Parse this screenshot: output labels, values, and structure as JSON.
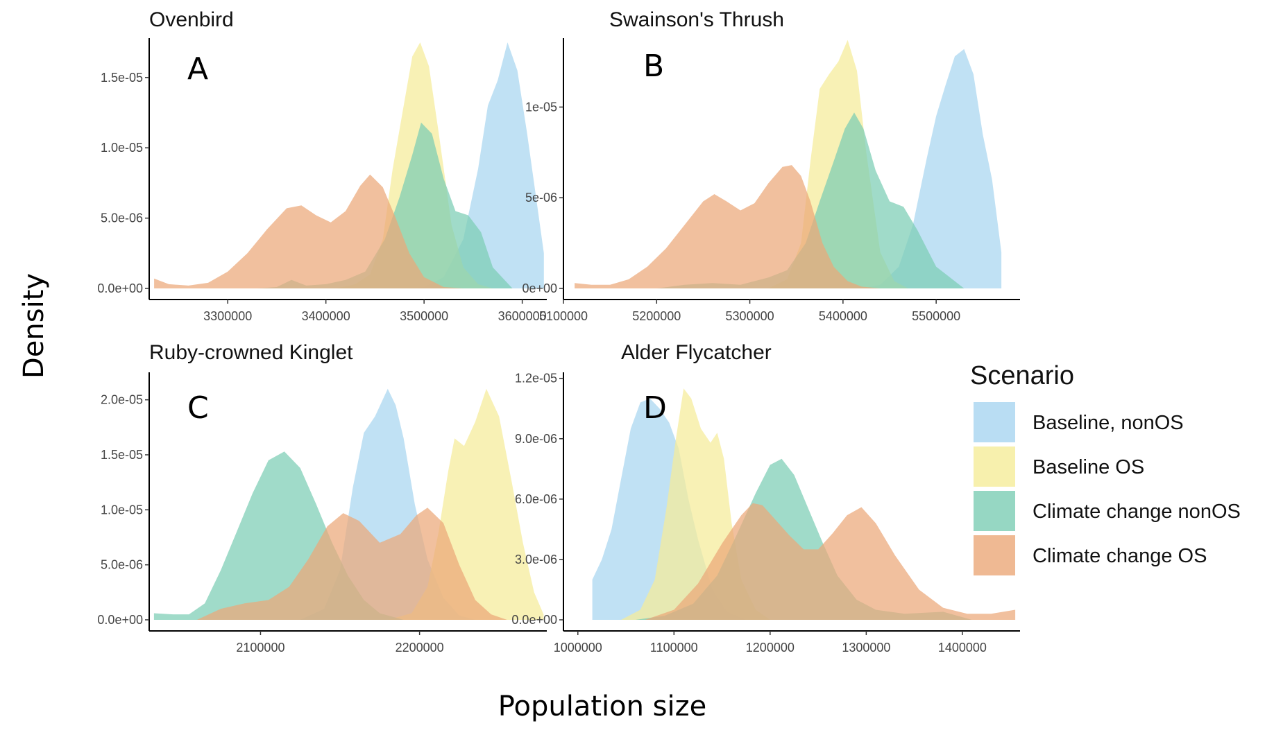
{
  "figure": {
    "ylabel": "Density",
    "xlabel": "Population size"
  },
  "legend": {
    "title": "Scenario",
    "placement": "right"
  },
  "colors": {
    "Baseline, nonOS": "#a8d5f0",
    "Baseline OS": "#f5ec98",
    "Climate change nonOS": "#7ccdb4",
    "Climate change OS": "#eba878"
  },
  "chart_data": [
    {
      "type": "area",
      "title": "Ovenbird",
      "letter": "A",
      "xlim": [
        3220000,
        3625000
      ],
      "ylim": [
        0,
        1.78e-05
      ],
      "xticks": [
        3300000,
        3400000,
        3500000,
        3600000
      ],
      "xtick_labels": [
        "3300000",
        "3400000",
        "3500000",
        "3600000"
      ],
      "yticks": [
        0,
        5e-06,
        1e-05,
        1.5e-05
      ],
      "ytick_labels": [
        "0.0e+00",
        "5.0e-06",
        "1.0e-05",
        "1.5e-05"
      ],
      "series": [
        {
          "name": "Baseline, nonOS",
          "x": [
            3480000,
            3500000,
            3520000,
            3540000,
            3555000,
            3565000,
            3575000,
            3585000,
            3595000,
            3605000,
            3615000,
            3622000,
            3622000
          ],
          "y": [
            0,
            1e-07,
            8e-07,
            3.5e-06,
            8.5e-06,
            1.3e-05,
            1.48e-05,
            1.75e-05,
            1.55e-05,
            1.1e-05,
            6e-06,
            2.5e-06,
            0
          ]
        },
        {
          "name": "Baseline OS",
          "x": [
            3410000,
            3430000,
            3445000,
            3458000,
            3468000,
            3478000,
            3488000,
            3496000,
            3505000,
            3515000,
            3528000,
            3540000,
            3555000,
            3570000
          ],
          "y": [
            0,
            3e-07,
            1e-06,
            3.5e-06,
            8.5e-06,
            1.25e-05,
            1.65e-05,
            1.75e-05,
            1.58e-05,
            1.1e-05,
            4.5e-06,
            1.5e-06,
            3e-07,
            0
          ]
        },
        {
          "name": "Climate change nonOS",
          "x": [
            3330000,
            3350000,
            3365000,
            3380000,
            3400000,
            3420000,
            3440000,
            3460000,
            3475000,
            3488000,
            3497000,
            3508000,
            3520000,
            3532000,
            3545000,
            3558000,
            3570000,
            3590000
          ],
          "y": [
            0,
            1e-07,
            6e-07,
            2e-07,
            3e-07,
            6e-07,
            1.2e-06,
            3.5e-06,
            6.5e-06,
            9.5e-06,
            1.18e-05,
            1.1e-05,
            7.8e-06,
            5.5e-06,
            5.2e-06,
            4e-06,
            1.5e-06,
            0
          ]
        },
        {
          "name": "Climate change OS",
          "x": [
            3225000,
            3240000,
            3260000,
            3280000,
            3300000,
            3320000,
            3340000,
            3360000,
            3375000,
            3390000,
            3405000,
            3420000,
            3435000,
            3445000,
            3458000,
            3470000,
            3485000,
            3500000,
            3520000,
            3540000
          ],
          "y": [
            7e-07,
            3e-07,
            2e-07,
            4e-07,
            1.2e-06,
            2.5e-06,
            4.2e-06,
            5.7e-06,
            5.9e-06,
            5.2e-06,
            4.7e-06,
            5.5e-06,
            7.3e-06,
            8.1e-06,
            7.2e-06,
            5.2e-06,
            2.5e-06,
            8e-07,
            1e-07,
            0
          ]
        }
      ]
    },
    {
      "type": "area",
      "title": "Swainson's Thrush",
      "letter": "B",
      "xlim": [
        5100000,
        5590000
      ],
      "ylim": [
        0,
        1.38e-05
      ],
      "xticks": [
        5100000,
        5200000,
        5300000,
        5400000,
        5500000
      ],
      "xtick_labels": [
        "5100000",
        "5200000",
        "5300000",
        "5400000",
        "5500000"
      ],
      "yticks": [
        0,
        5e-06,
        1e-05
      ],
      "ytick_labels": [
        "0e+00",
        "5e-06",
        "1e-05"
      ],
      "series": [
        {
          "name": "Baseline, nonOS",
          "x": [
            5420000,
            5440000,
            5460000,
            5475000,
            5490000,
            5500000,
            5510000,
            5520000,
            5530000,
            5540000,
            5550000,
            5560000,
            5570000,
            5570000
          ],
          "y": [
            0,
            2e-07,
            1.2e-06,
            3.5e-06,
            7.2e-06,
            9.5e-06,
            1.12e-05,
            1.28e-05,
            1.32e-05,
            1.18e-05,
            8.5e-06,
            6e-06,
            2e-06,
            0
          ]
        },
        {
          "name": "Baseline OS",
          "x": [
            5320000,
            5340000,
            5355000,
            5365000,
            5375000,
            5385000,
            5395000,
            5405000,
            5415000,
            5425000,
            5440000,
            5455000,
            5470000
          ],
          "y": [
            0,
            5e-07,
            2.5e-06,
            7e-06,
            1.1e-05,
            1.18e-05,
            1.25e-05,
            1.37e-05,
            1.2e-05,
            7.5e-06,
            2e-06,
            4e-07,
            0
          ]
        },
        {
          "name": "Climate change nonOS",
          "x": [
            5200000,
            5230000,
            5260000,
            5290000,
            5320000,
            5340000,
            5360000,
            5375000,
            5390000,
            5402000,
            5412000,
            5422000,
            5435000,
            5450000,
            5465000,
            5480000,
            5500000,
            5530000
          ],
          "y": [
            0,
            2e-07,
            3e-07,
            2e-07,
            6e-07,
            1e-06,
            2.5e-06,
            4.8e-06,
            7e-06,
            8.8e-06,
            9.7e-06,
            8.8e-06,
            6.5e-06,
            4.8e-06,
            4.5e-06,
            3.2e-06,
            1.2e-06,
            0
          ]
        },
        {
          "name": "Climate change OS",
          "x": [
            5112000,
            5130000,
            5150000,
            5170000,
            5190000,
            5210000,
            5230000,
            5250000,
            5262000,
            5275000,
            5290000,
            5305000,
            5320000,
            5335000,
            5345000,
            5355000,
            5365000,
            5378000,
            5390000,
            5405000,
            5420000,
            5440000
          ],
          "y": [
            3e-07,
            2e-07,
            2e-07,
            5e-07,
            1.2e-06,
            2.2e-06,
            3.5e-06,
            4.8e-06,
            5.2e-06,
            4.8e-06,
            4.3e-06,
            4.7e-06,
            5.8e-06,
            6.7e-06,
            6.8e-06,
            6.2e-06,
            4.8e-06,
            2.5e-06,
            1.2e-06,
            4e-07,
            1e-07,
            0
          ]
        }
      ]
    },
    {
      "type": "area",
      "title": "Ruby-crowned Kinglet",
      "letter": "C",
      "xlim": [
        2030000,
        2280000
      ],
      "ylim": [
        0,
        2.25e-05
      ],
      "xticks": [
        2100000,
        2200000
      ],
      "xtick_labels": [
        "2100000",
        "2200000"
      ],
      "yticks": [
        0,
        5e-06,
        1e-05,
        1.5e-05,
        2e-05
      ],
      "ytick_labels": [
        "0.0e+00",
        "5.0e-06",
        "1.0e-05",
        "1.5e-05",
        "2.0e-05"
      ],
      "series": [
        {
          "name": "Baseline, nonOS",
          "x": [
            2125000,
            2140000,
            2150000,
            2158000,
            2165000,
            2172000,
            2180000,
            2185000,
            2190000,
            2197000,
            2205000,
            2215000,
            2225000,
            2235000
          ],
          "y": [
            0,
            1e-06,
            4.5e-06,
            1.2e-05,
            1.7e-05,
            1.85e-05,
            2.1e-05,
            1.95e-05,
            1.65e-05,
            1.05e-05,
            5.5e-06,
            2e-06,
            4e-07,
            0
          ]
        },
        {
          "name": "Baseline OS",
          "x": [
            2180000,
            2195000,
            2205000,
            2212000,
            2218000,
            2222000,
            2228000,
            2235000,
            2242000,
            2250000,
            2258000,
            2265000,
            2272000,
            2278000,
            2278000
          ],
          "y": [
            0,
            6e-07,
            3e-06,
            8e-06,
            1.35e-05,
            1.65e-05,
            1.58e-05,
            1.8e-05,
            2.1e-05,
            1.85e-05,
            1.25e-05,
            7e-06,
            2.5e-06,
            5e-07,
            0
          ]
        },
        {
          "name": "Climate change nonOS",
          "x": [
            2033000,
            2045000,
            2055000,
            2065000,
            2075000,
            2085000,
            2095000,
            2105000,
            2115000,
            2125000,
            2135000,
            2145000,
            2155000,
            2165000,
            2175000,
            2190000
          ],
          "y": [
            6e-07,
            5e-07,
            5e-07,
            1.5e-06,
            4.5e-06,
            8e-06,
            1.15e-05,
            1.45e-05,
            1.53e-05,
            1.38e-05,
            1.05e-05,
            7e-06,
            4e-06,
            1.8e-06,
            6e-07,
            0
          ]
        },
        {
          "name": "Climate change OS",
          "x": [
            2060000,
            2075000,
            2090000,
            2105000,
            2118000,
            2130000,
            2142000,
            2152000,
            2162000,
            2175000,
            2188000,
            2198000,
            2205000,
            2215000,
            2225000,
            2235000,
            2245000,
            2255000
          ],
          "y": [
            0,
            1e-06,
            1.5e-06,
            1.8e-06,
            3e-06,
            5.5e-06,
            8.5e-06,
            9.7e-06,
            9e-06,
            7e-06,
            7.8e-06,
            9.5e-06,
            1.02e-05,
            8.8e-06,
            5e-06,
            1.8e-06,
            5e-07,
            0
          ]
        }
      ]
    },
    {
      "type": "area",
      "title": "Alder Flycatcher",
      "letter": "D",
      "xlim": [
        985000,
        1460000
      ],
      "ylim": [
        0,
        1.23e-05
      ],
      "xticks": [
        1000000,
        1100000,
        1200000,
        1300000,
        1400000
      ],
      "xtick_labels": [
        "1000000",
        "1100000",
        "1200000",
        "1300000",
        "1400000"
      ],
      "yticks": [
        0,
        3e-06,
        6e-06,
        9e-06,
        1.2e-05
      ],
      "ytick_labels": [
        "0.0e+00",
        "3.0e-06",
        "6.0e-06",
        "9.0e-06",
        "1.2e-05"
      ],
      "series": [
        {
          "name": "Baseline, nonOS",
          "x": [
            1015000,
            1015000,
            1025000,
            1035000,
            1045000,
            1055000,
            1065000,
            1075000,
            1085000,
            1095000,
            1105000,
            1115000,
            1125000,
            1140000,
            1155000,
            1175000
          ],
          "y": [
            0,
            2e-06,
            3e-06,
            4.5e-06,
            7e-06,
            9.5e-06,
            1.08e-05,
            1.1e-05,
            1.05e-05,
            9.8e-06,
            8.5e-06,
            6e-06,
            4e-06,
            1.5e-06,
            4e-07,
            0
          ]
        },
        {
          "name": "Baseline OS",
          "x": [
            1045000,
            1065000,
            1080000,
            1092000,
            1102000,
            1110000,
            1118000,
            1128000,
            1138000,
            1145000,
            1152000,
            1160000,
            1170000,
            1185000,
            1200000
          ],
          "y": [
            0,
            5e-07,
            2e-06,
            5.5e-06,
            9e-06,
            1.15e-05,
            1.1e-05,
            9.5e-06,
            8.8e-06,
            9.3e-06,
            8e-06,
            4.8e-06,
            2e-06,
            5e-07,
            0
          ]
        },
        {
          "name": "Climate change nonOS",
          "x": [
            1060000,
            1090000,
            1120000,
            1145000,
            1165000,
            1185000,
            1200000,
            1212000,
            1225000,
            1240000,
            1255000,
            1270000,
            1290000,
            1310000,
            1340000,
            1380000,
            1410000
          ],
          "y": [
            0,
            2e-07,
            8e-07,
            2.2e-06,
            4.2e-06,
            6.3e-06,
            7.7e-06,
            8e-06,
            7.2e-06,
            5.5e-06,
            3.8e-06,
            2.2e-06,
            1e-06,
            5e-07,
            3e-07,
            4e-07,
            0
          ]
        },
        {
          "name": "Climate change OS",
          "x": [
            1070000,
            1100000,
            1125000,
            1150000,
            1170000,
            1182000,
            1192000,
            1205000,
            1220000,
            1235000,
            1250000,
            1265000,
            1280000,
            1295000,
            1310000,
            1330000,
            1355000,
            1380000,
            1405000,
            1430000,
            1455000,
            1455000
          ],
          "y": [
            0,
            5e-07,
            1.8e-06,
            3.8e-06,
            5.2e-06,
            5.8e-06,
            5.7e-06,
            5e-06,
            4.2e-06,
            3.5e-06,
            3.5e-06,
            4.3e-06,
            5.2e-06,
            5.6e-06,
            4.8e-06,
            3.2e-06,
            1.5e-06,
            6e-07,
            3e-07,
            3e-07,
            5e-07,
            0
          ]
        }
      ]
    }
  ]
}
